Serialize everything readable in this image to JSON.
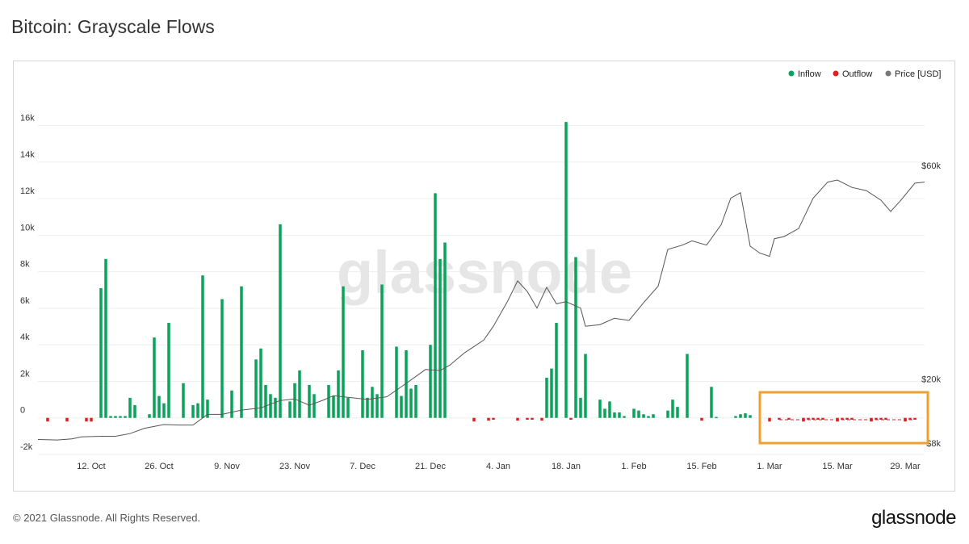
{
  "title": "Bitcoin: Grayscale Flows",
  "footer": {
    "copyright": "© 2021 Glassnode. All Rights Reserved.",
    "logo": "glassnode"
  },
  "watermark": "glassnode",
  "colors": {
    "inflow": "#0aa35c",
    "outflow": "#e0201e",
    "price": "#555555",
    "highlight": "#f0a030"
  },
  "chart_data": {
    "type": "bar",
    "title": "Bitcoin: Grayscale Flows",
    "legend": {
      "position": "top-right",
      "items": [
        {
          "label": "Inflow",
          "color": "#0aa35c"
        },
        {
          "label": "Outflow",
          "color": "#e0201e"
        },
        {
          "label": "Price [USD]",
          "color": "#777777"
        }
      ]
    },
    "ylim_left": [
      -2000,
      17000
    ],
    "ylim_right": [
      8000,
      73000
    ],
    "left_ticks": [
      {
        "v": -2000,
        "label": "-2k"
      },
      {
        "v": 0,
        "label": "0"
      },
      {
        "v": 2000,
        "label": "2k"
      },
      {
        "v": 4000,
        "label": "4k"
      },
      {
        "v": 6000,
        "label": "6k"
      },
      {
        "v": 8000,
        "label": "8k"
      },
      {
        "v": 10000,
        "label": "10k"
      },
      {
        "v": 12000,
        "label": "12k"
      },
      {
        "v": 14000,
        "label": "14k"
      },
      {
        "v": 16000,
        "label": "16k"
      }
    ],
    "right_ticks": [
      {
        "v": 8000,
        "label": "$8k"
      },
      {
        "v": 20000,
        "label": "$20k"
      },
      {
        "v": 60000,
        "label": "$60k"
      }
    ],
    "x_ticks": [
      "12. Oct",
      "26. Oct",
      "9. Nov",
      "23. Nov",
      "7. Dec",
      "21. Dec",
      "4. Jan",
      "18. Jan",
      "1. Feb",
      "15. Feb",
      "1. Mar",
      "15. Mar",
      "29. Mar"
    ],
    "x_start": "2020-10-01",
    "x_end": "2021-04-02",
    "series": [
      {
        "name": "Inflow",
        "type": "bar",
        "color": "#0aa35c",
        "points": [
          [
            "2020-10-14",
            7100
          ],
          [
            "2020-10-15",
            8700
          ],
          [
            "2020-10-16",
            100
          ],
          [
            "2020-10-17",
            100
          ],
          [
            "2020-10-18",
            100
          ],
          [
            "2020-10-19",
            100
          ],
          [
            "2020-10-20",
            1100
          ],
          [
            "2020-10-21",
            700
          ],
          [
            "2020-10-24",
            200
          ],
          [
            "2020-10-25",
            4400
          ],
          [
            "2020-10-26",
            1200
          ],
          [
            "2020-10-27",
            800
          ],
          [
            "2020-10-28",
            5200
          ],
          [
            "2020-10-31",
            1900
          ],
          [
            "2020-11-02",
            700
          ],
          [
            "2020-11-03",
            800
          ],
          [
            "2020-11-04",
            7800
          ],
          [
            "2020-11-05",
            1000
          ],
          [
            "2020-11-08",
            6500
          ],
          [
            "2020-11-10",
            1500
          ],
          [
            "2020-11-12",
            7200
          ],
          [
            "2020-11-15",
            3200
          ],
          [
            "2020-11-16",
            3800
          ],
          [
            "2020-11-17",
            1800
          ],
          [
            "2020-11-18",
            1300
          ],
          [
            "2020-11-19",
            1100
          ],
          [
            "2020-11-20",
            10600
          ],
          [
            "2020-11-22",
            900
          ],
          [
            "2020-11-23",
            1900
          ],
          [
            "2020-11-24",
            2600
          ],
          [
            "2020-11-26",
            1800
          ],
          [
            "2020-11-27",
            1300
          ],
          [
            "2020-11-30",
            1800
          ],
          [
            "2020-12-01",
            1200
          ],
          [
            "2020-12-02",
            2600
          ],
          [
            "2020-12-03",
            7200
          ],
          [
            "2020-12-04",
            1100
          ],
          [
            "2020-12-07",
            3700
          ],
          [
            "2020-12-08",
            1100
          ],
          [
            "2020-12-09",
            1700
          ],
          [
            "2020-12-10",
            1300
          ],
          [
            "2020-12-11",
            7300
          ],
          [
            "2020-12-14",
            3900
          ],
          [
            "2020-12-15",
            1200
          ],
          [
            "2020-12-16",
            3700
          ],
          [
            "2020-12-17",
            1600
          ],
          [
            "2020-12-18",
            1800
          ],
          [
            "2020-12-21",
            4000
          ],
          [
            "2020-12-22",
            12300
          ],
          [
            "2020-12-23",
            8700
          ],
          [
            "2020-12-24",
            9600
          ],
          [
            "2021-01-14",
            2200
          ],
          [
            "2021-01-15",
            2700
          ],
          [
            "2021-01-16",
            5200
          ],
          [
            "2021-01-18",
            16200
          ],
          [
            "2021-01-20",
            8800
          ],
          [
            "2021-01-21",
            1100
          ],
          [
            "2021-01-22",
            3500
          ],
          [
            "2021-01-25",
            1000
          ],
          [
            "2021-01-26",
            500
          ],
          [
            "2021-01-27",
            900
          ],
          [
            "2021-01-28",
            300
          ],
          [
            "2021-01-29",
            300
          ],
          [
            "2021-01-30",
            100
          ],
          [
            "2021-02-01",
            500
          ],
          [
            "2021-02-02",
            400
          ],
          [
            "2021-02-03",
            200
          ],
          [
            "2021-02-04",
            100
          ],
          [
            "2021-02-05",
            200
          ],
          [
            "2021-02-08",
            400
          ],
          [
            "2021-02-09",
            1000
          ],
          [
            "2021-02-10",
            600
          ],
          [
            "2021-02-12",
            3500
          ],
          [
            "2021-02-17",
            1700
          ],
          [
            "2021-02-18",
            50
          ],
          [
            "2021-02-22",
            100
          ],
          [
            "2021-02-23",
            200
          ],
          [
            "2021-02-24",
            250
          ],
          [
            "2021-02-25",
            150
          ]
        ]
      },
      {
        "name": "Outflow",
        "type": "bar",
        "color": "#e0201e",
        "points": [
          [
            "2020-10-03",
            -200
          ],
          [
            "2020-10-07",
            -200
          ],
          [
            "2020-10-11",
            -200
          ],
          [
            "2020-10-12",
            -200
          ],
          [
            "2020-12-30",
            -200
          ],
          [
            "2021-01-02",
            -150
          ],
          [
            "2021-01-03",
            -100
          ],
          [
            "2021-01-08",
            -150
          ],
          [
            "2021-01-10",
            -100
          ],
          [
            "2021-01-11",
            -100
          ],
          [
            "2021-01-13",
            -150
          ],
          [
            "2021-01-19",
            -100
          ],
          [
            "2021-02-15",
            -150
          ],
          [
            "2021-03-01",
            -200
          ],
          [
            "2021-03-03",
            -100
          ],
          [
            "2021-03-05",
            -100
          ],
          [
            "2021-03-08",
            -200
          ],
          [
            "2021-03-09",
            -100
          ],
          [
            "2021-03-10",
            -100
          ],
          [
            "2021-03-11",
            -100
          ],
          [
            "2021-03-12",
            -100
          ],
          [
            "2021-03-15",
            -200
          ],
          [
            "2021-03-16",
            -100
          ],
          [
            "2021-03-17",
            -100
          ],
          [
            "2021-03-18",
            -100
          ],
          [
            "2021-03-22",
            -200
          ],
          [
            "2021-03-23",
            -100
          ],
          [
            "2021-03-24",
            -100
          ],
          [
            "2021-03-25",
            -100
          ],
          [
            "2021-03-29",
            -200
          ],
          [
            "2021-03-30",
            -100
          ],
          [
            "2021-03-31",
            -100
          ]
        ]
      },
      {
        "name": "Price [USD]",
        "type": "line",
        "color": "#555555",
        "points": [
          [
            "2020-10-01",
            10800
          ],
          [
            "2020-10-05",
            10700
          ],
          [
            "2020-10-08",
            10900
          ],
          [
            "2020-10-10",
            11300
          ],
          [
            "2020-10-14",
            11400
          ],
          [
            "2020-10-17",
            11400
          ],
          [
            "2020-10-20",
            11900
          ],
          [
            "2020-10-23",
            12900
          ],
          [
            "2020-10-27",
            13600
          ],
          [
            "2020-10-30",
            13500
          ],
          [
            "2020-11-02",
            13500
          ],
          [
            "2020-11-05",
            15500
          ],
          [
            "2020-11-08",
            15500
          ],
          [
            "2020-11-12",
            16300
          ],
          [
            "2020-11-16",
            16700
          ],
          [
            "2020-11-20",
            18100
          ],
          [
            "2020-11-23",
            18400
          ],
          [
            "2020-11-26",
            17200
          ],
          [
            "2020-11-29",
            18200
          ],
          [
            "2020-12-01",
            19000
          ],
          [
            "2020-12-04",
            18700
          ],
          [
            "2020-12-08",
            18300
          ],
          [
            "2020-12-12",
            18800
          ],
          [
            "2020-12-16",
            21300
          ],
          [
            "2020-12-20",
            23900
          ],
          [
            "2020-12-23",
            23700
          ],
          [
            "2020-12-25",
            24700
          ],
          [
            "2020-12-28",
            27000
          ],
          [
            "2021-01-01",
            29400
          ],
          [
            "2021-01-03",
            32000
          ],
          [
            "2021-01-06",
            36800
          ],
          [
            "2021-01-08",
            40500
          ],
          [
            "2021-01-10",
            38500
          ],
          [
            "2021-01-12",
            35400
          ],
          [
            "2021-01-14",
            39300
          ],
          [
            "2021-01-16",
            36200
          ],
          [
            "2021-01-18",
            36600
          ],
          [
            "2021-01-21",
            35400
          ],
          [
            "2021-01-22",
            32000
          ],
          [
            "2021-01-25",
            32300
          ],
          [
            "2021-01-28",
            33500
          ],
          [
            "2021-01-31",
            33100
          ],
          [
            "2021-02-03",
            36400
          ],
          [
            "2021-02-06",
            39500
          ],
          [
            "2021-02-08",
            46400
          ],
          [
            "2021-02-11",
            47200
          ],
          [
            "2021-02-13",
            48000
          ],
          [
            "2021-02-16",
            47200
          ],
          [
            "2021-02-19",
            51000
          ],
          [
            "2021-02-21",
            56000
          ],
          [
            "2021-02-23",
            57000
          ],
          [
            "2021-02-25",
            47000
          ],
          [
            "2021-02-27",
            45700
          ],
          [
            "2021-03-01",
            45100
          ],
          [
            "2021-03-02",
            48400
          ],
          [
            "2021-03-04",
            48800
          ],
          [
            "2021-03-07",
            50300
          ],
          [
            "2021-03-10",
            56000
          ],
          [
            "2021-03-13",
            59000
          ],
          [
            "2021-03-15",
            59400
          ],
          [
            "2021-03-18",
            58000
          ],
          [
            "2021-03-21",
            57400
          ],
          [
            "2021-03-24",
            55600
          ],
          [
            "2021-03-26",
            53500
          ],
          [
            "2021-03-28",
            55500
          ],
          [
            "2021-03-31",
            58800
          ],
          [
            "2021-04-02",
            59000
          ]
        ]
      }
    ]
  }
}
